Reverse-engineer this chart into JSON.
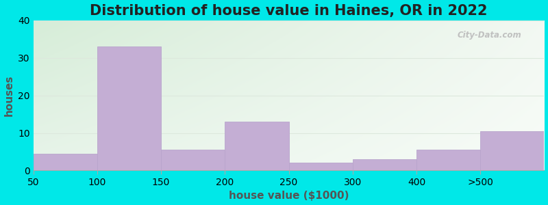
{
  "title": "Distribution of house value in Haines, OR in 2022",
  "xlabel": "house value ($1000)",
  "ylabel": "houses",
  "tick_labels": [
    "50",
    "100",
    "150",
    "200",
    "250",
    "300",
    "400",
    ">500"
  ],
  "values": [
    4.5,
    33.0,
    5.5,
    13.0,
    2.0,
    3.0,
    5.5,
    10.5
  ],
  "bar_color": "#c4aed4",
  "bar_edge_color": "#b8a4cc",
  "ylim": [
    0,
    40
  ],
  "yticks": [
    0,
    10,
    20,
    30,
    40
  ],
  "background_outer": "#00e8e8",
  "plot_bg_color_topleft": "#d6edd8",
  "plot_bg_color_topright": "#e8f0ec",
  "plot_bg_color_bottomleft": "#e0f0e4",
  "plot_bg_color_bottomright": "#f4f8f4",
  "grid_color": "#dde8dd",
  "title_fontsize": 15,
  "axis_label_fontsize": 11,
  "tick_fontsize": 10,
  "watermark_text": "City-Data.com"
}
